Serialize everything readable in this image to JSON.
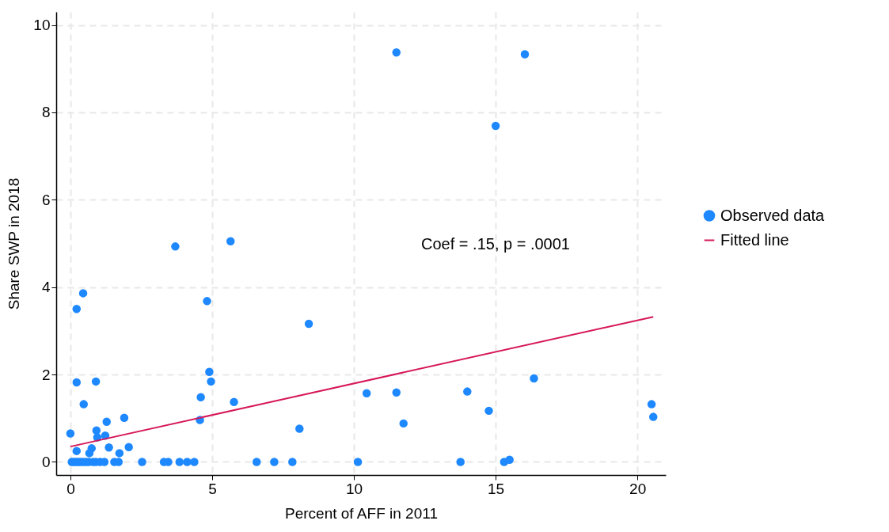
{
  "chart_data": {
    "type": "scatter",
    "xlabel": "Percent of AFF in 2011",
    "ylabel": "Share SWP in 2018",
    "xlim": [
      -0.5,
      21
    ],
    "ylim": [
      -0.3,
      10.3
    ],
    "xticks": [
      0,
      5,
      10,
      15,
      20
    ],
    "yticks": [
      0,
      2,
      4,
      6,
      8,
      10
    ],
    "grid": true,
    "legend": "right",
    "annotations": [
      "Coef = .15, p = .0001"
    ],
    "series": [
      {
        "name": "Observed data",
        "marker": "circle",
        "color": "#1e88ff",
        "x": [
          0.05,
          0.12,
          0.2,
          0.28,
          0.36,
          0.45,
          0.55,
          0.65,
          0.8,
          0.9,
          1.05,
          1.2,
          1.55,
          1.7,
          2.53,
          3.3,
          3.45,
          3.85,
          4.12,
          4.37,
          6.57,
          7.19,
          7.83,
          10.14,
          13.76,
          15.3,
          15.49,
          0,
          0.47,
          0.22,
          0.9,
          1.28,
          0.92,
          0.95,
          1.23,
          1.9,
          1.36,
          0.75,
          2.06,
          1.73,
          0.22,
          0.67,
          4.57,
          4.6,
          4.96,
          5.77,
          0.45,
          0.22,
          4.82,
          4.9,
          5.65,
          3.7,
          8.41,
          8.08,
          10.45,
          11.5,
          11.75,
          14.0,
          14.76,
          16.35,
          20.5,
          20.56,
          11.5,
          16.03,
          15.0
        ],
        "values": [
          0,
          0,
          0,
          0,
          0,
          0,
          0,
          0,
          0,
          0,
          0,
          0,
          0,
          0,
          0,
          0,
          0,
          0,
          0,
          0,
          0,
          0,
          0,
          0,
          0,
          0,
          0.05,
          0.65,
          1.32,
          1.82,
          1.84,
          0.92,
          0.72,
          0.56,
          0.6,
          1.01,
          0.33,
          0.31,
          0.34,
          0.2,
          0.25,
          0.2,
          0.96,
          1.48,
          1.84,
          1.37,
          3.86,
          3.5,
          3.68,
          2.06,
          5.05,
          4.93,
          3.16,
          0.76,
          1.57,
          1.59,
          0.88,
          1.61,
          1.17,
          1.91,
          1.32,
          1.03,
          9.37,
          9.33,
          7.69
        ]
      },
      {
        "name": "Fitted line",
        "type": "line",
        "marker": "none",
        "line_style": "solid",
        "color": "#d6175a",
        "x": [
          0,
          20.56
        ],
        "values": [
          0.35,
          3.32
        ]
      }
    ]
  }
}
